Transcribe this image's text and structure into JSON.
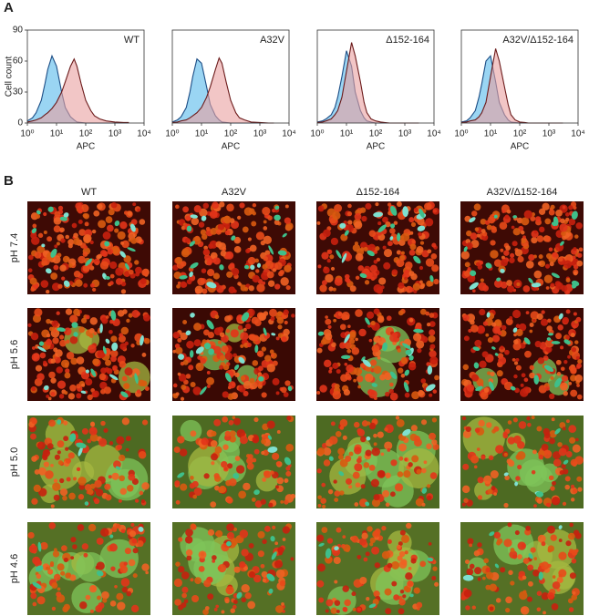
{
  "panels": {
    "a": "A",
    "b": "B"
  },
  "chart_data": [
    {
      "type": "line",
      "title": "WT",
      "xlabel": "APC",
      "ylabel": "Cell count",
      "log_x": true,
      "xlim": [
        1,
        10000
      ],
      "xticks": [
        {
          "value": 1,
          "label": "10⁰"
        },
        {
          "value": 10,
          "label": "10¹"
        },
        {
          "value": 100,
          "label": "10²"
        },
        {
          "value": 1000,
          "label": "10³"
        },
        {
          "value": 10000,
          "label": "10⁴"
        }
      ],
      "ylim": [
        0,
        90
      ],
      "yticks": [
        0,
        30,
        60,
        90
      ],
      "x": [
        1,
        1.5,
        2,
        3,
        4,
        5,
        7,
        10,
        15,
        20,
        30,
        40,
        50,
        70,
        100,
        150,
        200,
        300,
        500,
        1000,
        2000,
        3000
      ],
      "series": [
        {
          "color": "#1c4d85",
          "fill": "#8fd0f2",
          "values": [
            2,
            5,
            10,
            22,
            38,
            52,
            65,
            55,
            30,
            15,
            6,
            3,
            1,
            0.5,
            0,
            0,
            0,
            0,
            0,
            0,
            0,
            0
          ]
        },
        {
          "color": "#6b1a1a",
          "fill": "#eaa0a0",
          "values": [
            1,
            2,
            3,
            5,
            8,
            10,
            14,
            20,
            30,
            40,
            55,
            62,
            55,
            38,
            22,
            12,
            7,
            4,
            2,
            1,
            0.5,
            0.5
          ]
        }
      ]
    },
    {
      "type": "line",
      "title": "A32V",
      "xlabel": "APC",
      "log_x": true,
      "xlim": [
        1,
        10000
      ],
      "xticks": [
        {
          "value": 1,
          "label": "10⁰"
        },
        {
          "value": 10,
          "label": "10¹"
        },
        {
          "value": 100,
          "label": "10²"
        },
        {
          "value": 1000,
          "label": "10³"
        },
        {
          "value": 10000,
          "label": "10⁴"
        }
      ],
      "ylim": [
        0,
        90
      ],
      "x": [
        1,
        1.5,
        2,
        3,
        4,
        5,
        7,
        10,
        15,
        20,
        30,
        40,
        50,
        70,
        100,
        150,
        200,
        300,
        500,
        1000,
        2000,
        3000
      ],
      "series": [
        {
          "color": "#1c4d85",
          "fill": "#8fd0f2",
          "values": [
            1,
            3,
            6,
            15,
            30,
            45,
            62,
            58,
            35,
            18,
            7,
            3,
            1,
            0.5,
            0,
            0,
            0,
            0,
            0,
            0,
            0,
            0
          ]
        },
        {
          "color": "#6b1a1a",
          "fill": "#eaa0a0",
          "values": [
            0.5,
            1,
            2,
            3,
            5,
            7,
            10,
            15,
            25,
            35,
            52,
            63,
            58,
            40,
            22,
            10,
            5,
            3,
            1,
            0.5,
            0,
            0
          ]
        }
      ]
    },
    {
      "type": "line",
      "title": "Δ152-164",
      "xlabel": "APC",
      "log_x": true,
      "xlim": [
        1,
        10000
      ],
      "xticks": [
        {
          "value": 1,
          "label": "10⁰"
        },
        {
          "value": 10,
          "label": "10¹"
        },
        {
          "value": 100,
          "label": "10²"
        },
        {
          "value": 1000,
          "label": "10³"
        },
        {
          "value": 10000,
          "label": "10⁴"
        }
      ],
      "ylim": [
        0,
        90
      ],
      "x": [
        1,
        1.5,
        2,
        3,
        4,
        5,
        7,
        10,
        15,
        20,
        30,
        40,
        50,
        70,
        100,
        150,
        200,
        300,
        500,
        1000,
        2000,
        3000
      ],
      "series": [
        {
          "color": "#1c4d85",
          "fill": "#8fd0f2",
          "values": [
            1,
            2,
            4,
            8,
            15,
            25,
            45,
            70,
            55,
            30,
            12,
            5,
            2,
            1,
            0,
            0,
            0,
            0,
            0,
            0,
            0,
            0
          ]
        },
        {
          "color": "#6b1a1a",
          "fill": "#eaa0a0",
          "values": [
            0.5,
            1,
            2,
            4,
            8,
            12,
            25,
            50,
            78,
            65,
            40,
            20,
            10,
            4,
            2,
            1,
            0.5,
            0,
            0,
            0,
            0,
            0
          ]
        }
      ]
    },
    {
      "type": "line",
      "title": "A32V/Δ152-164",
      "xlabel": "APC",
      "log_x": true,
      "xlim": [
        1,
        10000
      ],
      "xticks": [
        {
          "value": 1,
          "label": "10⁰"
        },
        {
          "value": 10,
          "label": "10¹"
        },
        {
          "value": 100,
          "label": "10²"
        },
        {
          "value": 1000,
          "label": "10³"
        },
        {
          "value": 10000,
          "label": "10⁴"
        }
      ],
      "ylim": [
        0,
        90
      ],
      "x": [
        1,
        1.5,
        2,
        3,
        4,
        5,
        7,
        10,
        15,
        20,
        30,
        40,
        50,
        70,
        100,
        150,
        200,
        300,
        500,
        1000,
        2000,
        3000
      ],
      "series": [
        {
          "color": "#1c4d85",
          "fill": "#8fd0f2",
          "values": [
            1,
            2,
            5,
            12,
            25,
            38,
            60,
            65,
            40,
            20,
            8,
            3,
            1,
            0.5,
            0,
            0,
            0,
            0,
            0,
            0,
            0,
            0
          ]
        },
        {
          "color": "#6b1a1a",
          "fill": "#eaa0a0",
          "values": [
            0.5,
            1,
            2,
            3,
            6,
            10,
            20,
            45,
            72,
            60,
            35,
            18,
            8,
            3,
            1,
            0.5,
            0,
            0,
            0,
            0,
            0,
            0
          ]
        }
      ]
    }
  ],
  "micrographs": {
    "columns": [
      "WT",
      "A32V",
      "Δ152-164",
      "A32V/Δ152-164"
    ],
    "rows": [
      "pH 7.4",
      "pH 5.6",
      "pH 5.0",
      "pH 4.6"
    ]
  }
}
